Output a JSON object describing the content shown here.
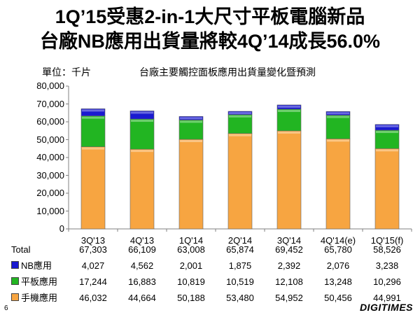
{
  "header": {
    "title_line1": "1Q’15受惠2-in-1大尺寸平板電腦新品",
    "title_line2": "台廠NB應用出貨量將較4Q’14成長56.0%"
  },
  "footer": {
    "page_number": "6",
    "logo": "DIGITIMES"
  },
  "chart_data": {
    "type": "bar",
    "stacked": true,
    "title": "台廠主要觸控面板應用出貨量變化暨預測",
    "unit_label": "單位：千片",
    "categories": [
      "3Q'13",
      "4Q'13",
      "1Q'14",
      "2Q'14",
      "3Q'14",
      "4Q'14(e)",
      "1Q'15(f)"
    ],
    "ylim": [
      0,
      80000
    ],
    "yticks": [
      "0",
      "10,000",
      "20,000",
      "30,000",
      "40,000",
      "50,000",
      "60,000",
      "70,000",
      "80,000"
    ],
    "series": [
      {
        "name": "手機應用",
        "color": "#f7a541",
        "values": [
          46032,
          44664,
          50188,
          53480,
          54952,
          50456,
          44991
        ],
        "labels": [
          "46,032",
          "44,664",
          "50,188",
          "53,480",
          "54,952",
          "50,456",
          "44,991"
        ]
      },
      {
        "name": "平板應用",
        "color": "#22b522",
        "values": [
          17244,
          16883,
          10819,
          10519,
          12108,
          13248,
          10296
        ],
        "labels": [
          "17,244",
          "16,883",
          "10,819",
          "10,519",
          "12,108",
          "13,248",
          "10,296"
        ]
      },
      {
        "name": "NB應用",
        "color": "#1a1ad0",
        "values": [
          4027,
          4562,
          2001,
          1875,
          2392,
          2076,
          3238
        ],
        "labels": [
          "4,027",
          "4,562",
          "2,001",
          "1,875",
          "2,392",
          "2,076",
          "3,238"
        ]
      }
    ],
    "total": {
      "label": "Total",
      "labels": [
        "67,303",
        "66,109",
        "63,008",
        "65,874",
        "69,452",
        "65,780",
        "58,526"
      ]
    },
    "grid": false,
    "legend": "table-rows"
  }
}
